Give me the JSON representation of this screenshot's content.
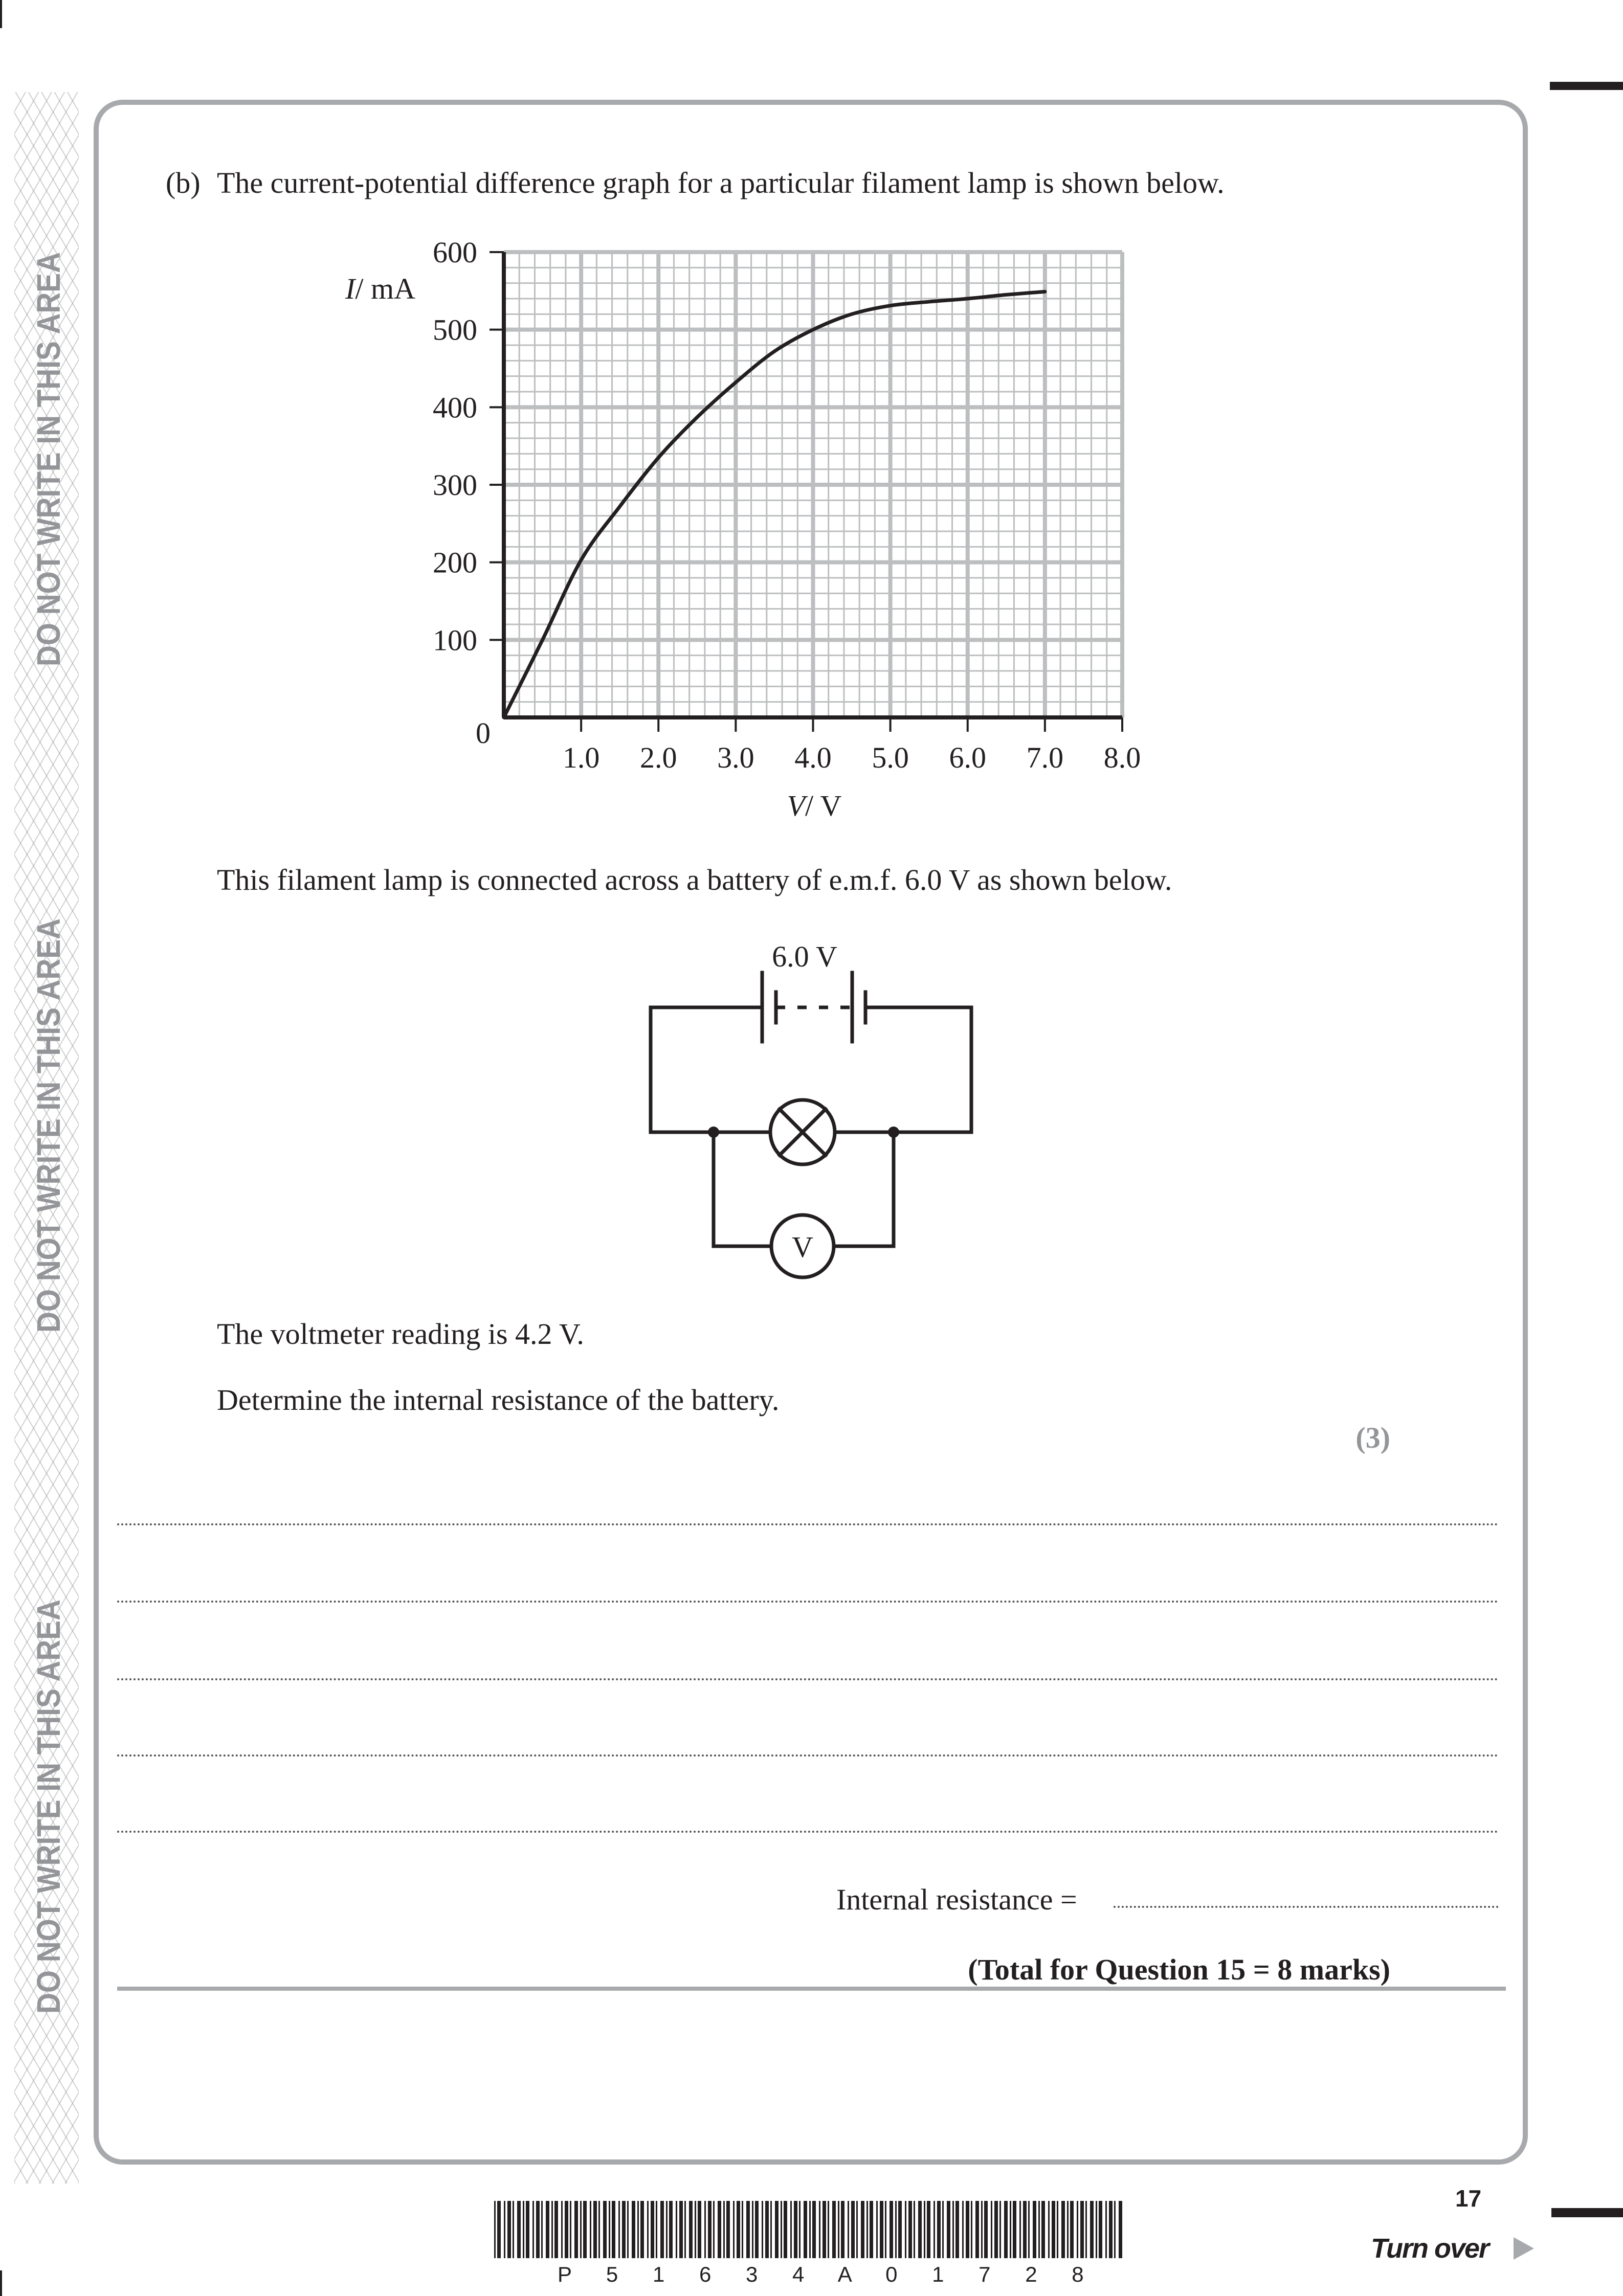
{
  "margin": {
    "warning_text": "DO NOT WRITE IN THIS AREA",
    "color": "#939598"
  },
  "question": {
    "part_label": "(b)",
    "intro": "The current-potential difference graph for a particular filament lamp is shown below.",
    "circuit_intro": "This filament lamp is connected across a battery of e.m.f. 6.0 V as shown below.",
    "voltmeter_reading": "The voltmeter reading is 4.2 V.",
    "instruction": "Determine the internal resistance of the battery.",
    "marks": "(3)"
  },
  "chart_data": {
    "type": "line",
    "title": "",
    "xlabel_var": "V",
    "xlabel_unit": "/ V",
    "ylabel_var": "I",
    "ylabel_unit": "/ mA",
    "xlim": [
      0,
      8.0
    ],
    "ylim": [
      0,
      600
    ],
    "grid": true,
    "x_major": 1.0,
    "x_minor": 0.2,
    "y_major": 100,
    "y_minor": 20,
    "origin_label": "0",
    "x_tick_labels": [
      "1.0",
      "2.0",
      "3.0",
      "4.0",
      "5.0",
      "6.0",
      "7.0",
      "8.0"
    ],
    "y_tick_labels": [
      "100",
      "200",
      "300",
      "400",
      "500",
      "600"
    ],
    "series": [
      {
        "x": [
          0,
          0.5,
          1.0,
          1.5,
          2.0,
          2.5,
          3.0,
          3.5,
          4.0,
          4.5,
          5.0,
          5.5,
          6.0,
          6.5,
          7.0
        ],
        "y": [
          0,
          100,
          203,
          272,
          335,
          387,
          432,
          472,
          500,
          520,
          531,
          536,
          540,
          545,
          549
        ]
      }
    ],
    "colors": {
      "grid": "#bcbec0",
      "axis": "#231f20",
      "curve": "#231f20"
    }
  },
  "circuit": {
    "battery_label": "6.0 V",
    "voltmeter_label": "V",
    "components": [
      "battery",
      "filament-lamp",
      "voltmeter"
    ]
  },
  "answer": {
    "line_count": 5,
    "result_label": "Internal resistance =",
    "total": "(Total for Question 15 = 8 marks)"
  },
  "footer": {
    "page_number": "17",
    "turn_over": "Turn over",
    "barcode_text": "P 5 1 6 3 4 A 0 1 7 2 8"
  }
}
